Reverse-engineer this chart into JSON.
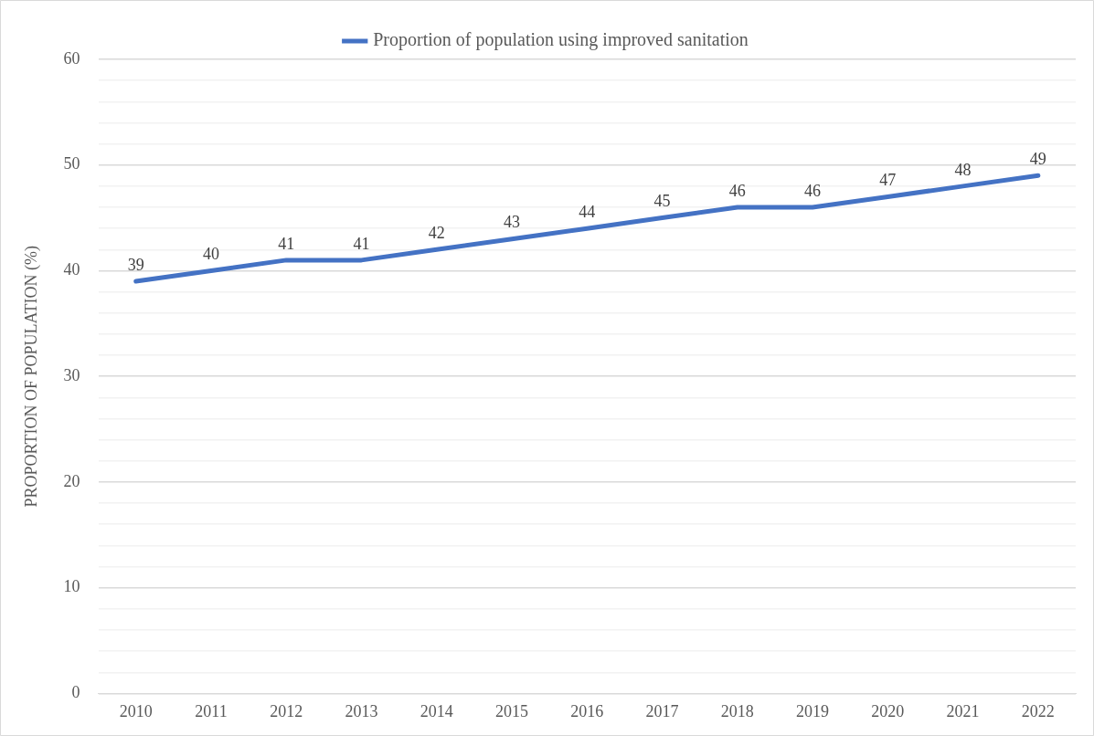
{
  "chart_data": {
    "type": "line",
    "ylabel": "PROPORTION OF POPULATION (%)",
    "categories": [
      "2010",
      "2011",
      "2012",
      "2013",
      "2014",
      "2015",
      "2016",
      "2017",
      "2018",
      "2019",
      "2020",
      "2021",
      "2022"
    ],
    "series": [
      {
        "name": "Proportion of population using improved sanitation",
        "color": "#4472c4",
        "values": [
          39,
          40,
          41,
          41,
          42,
          43,
          44,
          45,
          46,
          46,
          47,
          48,
          49
        ]
      }
    ],
    "ylim": [
      0,
      60
    ],
    "yticks": [
      0,
      {
        "value": 2,
        "label": null
      },
      {
        "value": 4,
        "label": null
      },
      {
        "value": 6,
        "label": null
      },
      {
        "value": 8,
        "label": null
      },
      10,
      {
        "value": 12,
        "label": null
      },
      {
        "value": 14,
        "label": null
      },
      {
        "value": 16,
        "label": null
      },
      {
        "value": 18,
        "label": null
      },
      20,
      {
        "value": 22,
        "label": null
      },
      {
        "value": 24,
        "label": null
      },
      {
        "value": 26,
        "label": null
      },
      {
        "value": 28,
        "label": null
      },
      30,
      {
        "value": 32,
        "label": null
      },
      {
        "value": 34,
        "label": null
      },
      {
        "value": 36,
        "label": null
      },
      {
        "value": 38,
        "label": null
      },
      40,
      {
        "value": 42,
        "label": null
      },
      {
        "value": 44,
        "label": null
      },
      {
        "value": 46,
        "label": null
      },
      {
        "value": 48,
        "label": null
      },
      50,
      {
        "value": 52,
        "label": null
      },
      {
        "value": 54,
        "label": null
      },
      {
        "value": 56,
        "label": null
      },
      {
        "value": 58,
        "label": null
      },
      60
    ],
    "grid": "y",
    "legend": "top",
    "marker": "none",
    "line_style": "solid",
    "data_labels": true
  }
}
